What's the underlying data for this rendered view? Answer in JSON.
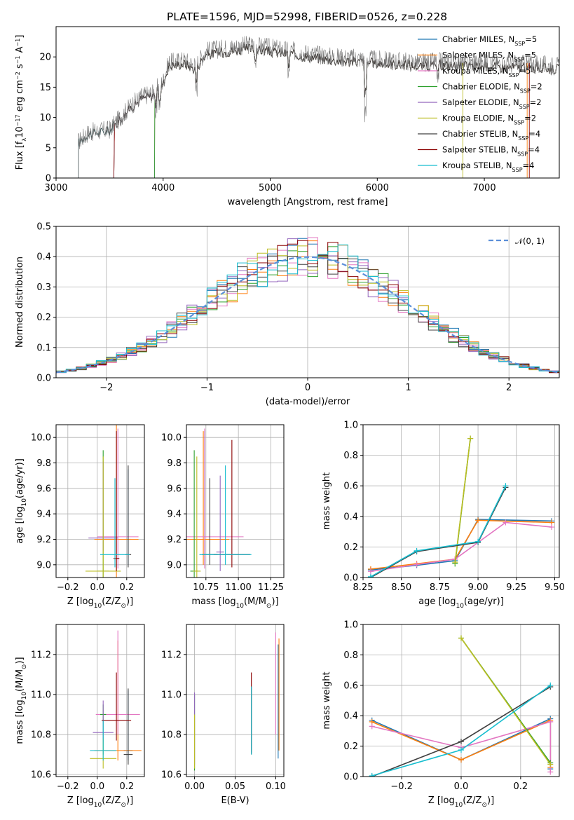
{
  "title": "PLATE=1596, MJD=52998, FIBERID=0526, z=0.228",
  "colors": {
    "Chabrier MILES": "#1f77b4",
    "Salpeter MILES": "#ff7f0e",
    "Kroupa MILES": "#e377c2",
    "Chabrier ELODIE": "#2ca02c",
    "Salpeter ELODIE": "#9467bd",
    "Kroupa ELODIE": "#bcbd22",
    "Chabrier STELIB": "#404040",
    "Salpeter STELIB": "#8b0000",
    "Kroupa STELIB": "#17becf",
    "gauss": "#5b8fd9"
  },
  "chart_data": [
    {
      "id": "spectrum",
      "type": "line",
      "xlabel": "wavelength [Angstrom, rest frame]",
      "ylabel": "Flux [fλ10⁻¹⁷ erg cm⁻² s⁻¹ A⁻¹]",
      "xlim": [
        3000,
        7700
      ],
      "ylim": [
        0,
        25
      ],
      "xticks": [
        3000,
        4000,
        5000,
        6000,
        7000
      ],
      "yticks": [
        0,
        5,
        10,
        15,
        20
      ],
      "legend_position": "upper-right",
      "series": [
        {
          "name": "Chabrier MILES, N_SSP=5",
          "start": 3540
        },
        {
          "name": "Salpeter MILES, N_SSP=5",
          "start": 3540
        },
        {
          "name": "Kroupa MILES, N_SSP=5",
          "start": 3540
        },
        {
          "name": "Chabrier ELODIE, N_SSP=2",
          "start": 3920
        },
        {
          "name": "Salpeter ELODIE, N_SSP=2",
          "start": 3920
        },
        {
          "name": "Kroupa ELODIE, N_SSP=2",
          "start": 3920
        },
        {
          "name": "Chabrier STELIB, N_SSP=4",
          "start": 3210
        },
        {
          "name": "Salpeter STELIB, N_SSP=4",
          "start": 3540
        },
        {
          "name": "Kroupa STELIB, N_SSP=4",
          "start": 3210
        }
      ],
      "continuum": {
        "x": [
          3210,
          3300,
          3500,
          3600,
          3700,
          3800,
          3900,
          4000,
          4050,
          4200,
          4300,
          4400,
          4600,
          4800,
          5000,
          5200,
          5400,
          5600,
          5800,
          6000,
          6200,
          6400,
          6600,
          6800,
          7000,
          7200,
          7400,
          7700
        ],
        "y": [
          6.0,
          7.5,
          8.0,
          10.0,
          12.0,
          13.5,
          14.0,
          16.0,
          19.0,
          19.5,
          18.5,
          21.0,
          21.5,
          22.0,
          21.5,
          21.0,
          20.5,
          20.0,
          19.8,
          19.5,
          19.3,
          19.0,
          19.2,
          19.0,
          19.0,
          18.8,
          18.8,
          18.5
        ]
      }
    },
    {
      "id": "residuals",
      "type": "line",
      "xlabel": "(data-model)/error",
      "ylabel": "Normed distribution",
      "xlim": [
        -2.5,
        2.5
      ],
      "ylim": [
        0,
        0.5
      ],
      "xticks": [
        -2,
        -1,
        0,
        1,
        2
      ],
      "yticks": [
        0.0,
        0.1,
        0.2,
        0.3,
        0.4,
        0.5
      ],
      "grid": true,
      "legend_position": "upper-right",
      "gaussian": {
        "name": "𝒩(0, 1)",
        "mu": 0,
        "sigma": 1
      },
      "bin_width": 0.1
    },
    {
      "id": "age-vs-Z",
      "type": "scatter",
      "xlabel": "Z [log10(Z/Z⊙)]",
      "ylabel": "age  [log10(age/yr)]",
      "xlim": [
        -0.28,
        0.32
      ],
      "ylim": [
        8.9,
        10.1
      ],
      "xticks": [
        -0.2,
        0.0,
        0.2
      ],
      "yticks": [
        9.0,
        9.2,
        9.4,
        9.6,
        9.8,
        10.0
      ],
      "grid": true,
      "points": [
        {
          "model": "Chabrier MILES",
          "x": 0.21,
          "xerr": 0.02,
          "y": 9.2,
          "yerr": [
            0.2,
            0.55
          ]
        },
        {
          "model": "Salpeter MILES",
          "x": 0.13,
          "xerr": 0.15,
          "y": 9.2,
          "yerr": [
            0.3,
            0.9
          ]
        },
        {
          "model": "Kroupa MILES",
          "x": 0.14,
          "xerr": 0.14,
          "y": 9.22,
          "yerr": [
            0.25,
            0.85
          ]
        },
        {
          "model": "Chabrier ELODIE",
          "x": 0.04,
          "xerr": 0.04,
          "y": 8.95,
          "yerr": [
            0.05,
            0.95
          ]
        },
        {
          "model": "Salpeter ELODIE",
          "x": 0.04,
          "xerr": 0.1,
          "y": 9.21,
          "yerr": [
            0.1,
            0.6
          ]
        },
        {
          "model": "Kroupa ELODIE",
          "x": 0.04,
          "xerr": 0.12,
          "y": 8.95,
          "yerr": [
            0.05,
            0.9
          ]
        },
        {
          "model": "Chabrier STELIB",
          "x": 0.21,
          "xerr": 0.02,
          "y": 9.08,
          "yerr": [
            0.1,
            0.7
          ]
        },
        {
          "model": "Salpeter STELIB",
          "x": 0.13,
          "xerr": 0.02,
          "y": 9.05,
          "yerr": [
            0.1,
            1.0
          ]
        },
        {
          "model": "Kroupa STELIB",
          "x": 0.12,
          "xerr": 0.1,
          "y": 9.08,
          "yerr": [
            0.1,
            0.6
          ]
        }
      ]
    },
    {
      "id": "age-vs-mass",
      "type": "scatter",
      "xlabel": "mass [log10(M/M⊙)]",
      "ylabel": "",
      "xlim": [
        10.6,
        11.35
      ],
      "ylim": [
        8.9,
        10.1
      ],
      "xticks": [
        10.75,
        11.0,
        11.25
      ],
      "yticks": [
        9.0,
        9.2,
        9.4,
        9.6,
        9.8,
        10.0
      ],
      "grid": true,
      "points": [
        {
          "model": "Chabrier MILES",
          "x": 10.74,
          "xerr": 0.05,
          "y": 9.2,
          "yerr": [
            0.2,
            0.85
          ]
        },
        {
          "model": "Salpeter MILES",
          "x": 10.73,
          "xerr": 0.2,
          "y": 9.2,
          "yerr": [
            0.2,
            0.85
          ]
        },
        {
          "model": "Kroupa MILES",
          "x": 10.74,
          "xerr": 0.3,
          "y": 9.22,
          "yerr": [
            0.25,
            0.85
          ]
        },
        {
          "model": "Chabrier ELODIE",
          "x": 10.66,
          "xerr": 0.03,
          "y": 8.95,
          "yerr": [
            0.05,
            0.95
          ]
        },
        {
          "model": "Salpeter ELODIE",
          "x": 10.86,
          "xerr": 0.03,
          "y": 9.1,
          "yerr": [
            0.15,
            0.6
          ]
        },
        {
          "model": "Kroupa ELODIE",
          "x": 10.68,
          "xerr": 0.03,
          "y": 8.95,
          "yerr": [
            0.05,
            0.9
          ]
        },
        {
          "model": "Chabrier STELIB",
          "x": 10.78,
          "xerr": 0.06,
          "y": 9.08,
          "yerr": [
            0.08,
            0.6
          ]
        },
        {
          "model": "Salpeter STELIB",
          "x": 10.95,
          "xerr": 0.14,
          "y": 9.08,
          "yerr": [
            0.1,
            0.9
          ]
        },
        {
          "model": "Kroupa STELIB",
          "x": 10.9,
          "xerr": 0.2,
          "y": 9.08,
          "yerr": [
            0.08,
            0.7
          ]
        }
      ]
    },
    {
      "id": "mass-weight-vs-age",
      "type": "line",
      "xlabel": "age  [log10(age/yr)]",
      "ylabel": "mass weight",
      "xlim": [
        8.25,
        9.53
      ],
      "ylim": [
        0,
        1
      ],
      "xticks": [
        8.25,
        8.5,
        8.75,
        9.0,
        9.25,
        9.5
      ],
      "yticks": [
        0.0,
        0.2,
        0.4,
        0.6,
        0.8,
        1.0
      ],
      "grid": true,
      "series": [
        {
          "model": "Chabrier MILES",
          "x": [
            8.3,
            8.6,
            8.85,
            9.0,
            9.48
          ],
          "y": [
            0.05,
            0.08,
            0.11,
            0.38,
            0.37
          ]
        },
        {
          "model": "Salpeter MILES",
          "x": [
            8.3,
            8.6,
            8.85,
            9.0,
            9.48
          ],
          "y": [
            0.055,
            0.09,
            0.12,
            0.375,
            0.36
          ]
        },
        {
          "model": "Kroupa MILES",
          "x": [
            8.3,
            8.6,
            8.85,
            9.18,
            9.48
          ],
          "y": [
            0.04,
            0.085,
            0.12,
            0.36,
            0.33
          ]
        },
        {
          "model": "Chabrier ELODIE",
          "x": [
            8.85,
            8.95
          ],
          "y": [
            0.09,
            0.91
          ]
        },
        {
          "model": "Kroupa ELODIE",
          "x": [
            8.85,
            8.95
          ],
          "y": [
            0.1,
            0.91
          ]
        },
        {
          "model": "Chabrier STELIB",
          "x": [
            8.3,
            8.6,
            9.0,
            9.18
          ],
          "y": [
            0.0,
            0.17,
            0.23,
            0.59
          ]
        },
        {
          "model": "Kroupa STELIB",
          "x": [
            8.3,
            8.6,
            9.0,
            9.18
          ],
          "y": [
            0.005,
            0.175,
            0.235,
            0.6
          ]
        }
      ]
    },
    {
      "id": "mass-vs-Z",
      "type": "scatter",
      "xlabel": "Z [log10(Z/Z⊙)]",
      "ylabel": "mass [log10(M/M⊙)]",
      "xlim": [
        -0.28,
        0.32
      ],
      "ylim": [
        10.59,
        11.35
      ],
      "xticks": [
        -0.2,
        0.0,
        0.2
      ],
      "yticks": [
        10.6,
        10.8,
        11.0,
        11.2
      ],
      "grid": true,
      "points": [
        {
          "model": "Chabrier MILES",
          "x": 0.21,
          "xerr": 0.03,
          "y": 10.72,
          "yerr": [
            0.05,
            0.3
          ]
        },
        {
          "model": "Salpeter MILES",
          "x": 0.14,
          "xerr": 0.16,
          "y": 10.72,
          "yerr": [
            0.05,
            0.55
          ]
        },
        {
          "model": "Kroupa MILES",
          "x": 0.14,
          "xerr": 0.15,
          "y": 10.9,
          "yerr": [
            0.1,
            0.42
          ]
        },
        {
          "model": "Chabrier ELODIE",
          "x": 0.04,
          "xerr": 0.02,
          "y": 10.9,
          "yerr": [
            0.2,
            0.05
          ]
        },
        {
          "model": "Salpeter ELODIE",
          "x": 0.04,
          "xerr": 0.07,
          "y": 10.81,
          "yerr": [
            0.05,
            0.16
          ]
        },
        {
          "model": "Kroupa ELODIE",
          "x": 0.04,
          "xerr": 0.09,
          "y": 10.68,
          "yerr": [
            0.05,
            0.1
          ]
        },
        {
          "model": "Chabrier STELIB",
          "x": 0.21,
          "xerr": 0.03,
          "y": 10.7,
          "yerr": [
            0.05,
            0.33
          ]
        },
        {
          "model": "Salpeter STELIB",
          "x": 0.13,
          "xerr": 0.1,
          "y": 10.87,
          "yerr": [
            0.1,
            0.24
          ]
        },
        {
          "model": "Kroupa STELIB",
          "x": 0.04,
          "xerr": 0.09,
          "y": 10.72,
          "yerr": [
            0.05,
            0.15
          ]
        }
      ]
    },
    {
      "id": "mass-vs-ebv",
      "type": "scatter",
      "xlabel": "E(B-V)",
      "ylabel": "",
      "xlim": [
        -0.01,
        0.11
      ],
      "ylim": [
        10.59,
        11.35
      ],
      "xticks": [
        0.0,
        0.05,
        0.1
      ],
      "yticks": [
        10.6,
        10.8,
        11.0,
        11.2
      ],
      "grid": true,
      "points": [
        {
          "model": "Chabrier MILES",
          "x": 0.103,
          "y": 10.7,
          "yerr": [
            0.02,
            0.55
          ]
        },
        {
          "model": "Salpeter MILES",
          "x": 0.104,
          "y": 10.75,
          "yerr": [
            0.03,
            0.53
          ]
        },
        {
          "model": "Kroupa MILES",
          "x": 0.1,
          "y": 10.8,
          "yerr": [
            0.0,
            0.51
          ]
        },
        {
          "model": "Chabrier ELODIE",
          "x": 0.0,
          "y": 10.65,
          "yerr": [
            0.03,
            0.35
          ]
        },
        {
          "model": "Salpeter ELODIE",
          "x": 0.0,
          "y": 10.75,
          "yerr": [
            0.1,
            0.26
          ]
        },
        {
          "model": "Kroupa ELODIE",
          "x": 0.0,
          "y": 10.68,
          "yerr": [
            0.05,
            0.22
          ]
        },
        {
          "model": "Chabrier STELIB",
          "x": 0.07,
          "y": 10.73,
          "yerr": [
            0.03,
            0.31
          ]
        },
        {
          "model": "Salpeter STELIB",
          "x": 0.07,
          "y": 10.75,
          "yerr": [
            0.04,
            0.36
          ]
        },
        {
          "model": "Kroupa STELIB",
          "x": 0.07,
          "y": 10.73,
          "yerr": [
            0.03,
            0.31
          ]
        }
      ]
    },
    {
      "id": "mass-weight-vs-Z",
      "type": "line",
      "xlabel": "Z [log10(Z/Z⊙)]",
      "ylabel": "mass weight",
      "xlim": [
        -0.33,
        0.33
      ],
      "ylim": [
        0,
        1
      ],
      "xticks": [
        -0.2,
        0.0,
        0.2
      ],
      "yticks": [
        0.0,
        0.2,
        0.4,
        0.6,
        0.8,
        1.0
      ],
      "grid": true,
      "series": [
        {
          "model": "Chabrier MILES",
          "x": [
            -0.3,
            0.0,
            0.3,
            0.3
          ],
          "y": [
            0.37,
            0.11,
            0.38,
            0.05
          ]
        },
        {
          "model": "Salpeter MILES",
          "x": [
            -0.3,
            0.0,
            0.3,
            0.3
          ],
          "y": [
            0.36,
            0.11,
            0.37,
            0.06
          ]
        },
        {
          "model": "Kroupa MILES",
          "x": [
            -0.3,
            0.0,
            0.3,
            0.3
          ],
          "y": [
            0.33,
            0.19,
            0.36,
            0.03
          ]
        },
        {
          "model": "Chabrier ELODIE",
          "x": [
            0.0,
            0.3
          ],
          "y": [
            0.91,
            0.09
          ]
        },
        {
          "model": "Kroupa ELODIE",
          "x": [
            0.0,
            0.3
          ],
          "y": [
            0.91,
            0.08
          ]
        },
        {
          "model": "Chabrier STELIB",
          "x": [
            -0.3,
            0.0,
            0.3
          ],
          "y": [
            0.0,
            0.23,
            0.59
          ]
        },
        {
          "model": "Kroupa STELIB",
          "x": [
            -0.3,
            0.0,
            0.3
          ],
          "y": [
            0.005,
            0.175,
            0.6
          ]
        }
      ]
    }
  ]
}
